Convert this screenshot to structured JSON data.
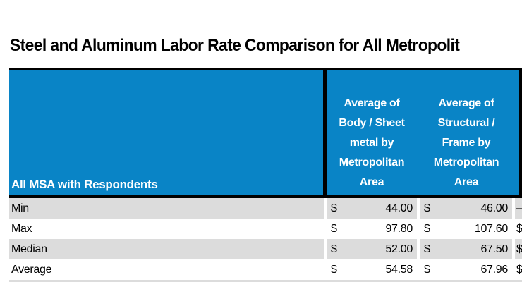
{
  "title": "Steel and Aluminum Labor Rate Comparison for All Metropolit",
  "colors": {
    "header_blue": "#0984c6",
    "row_stripe_gray": "#dcdcdc",
    "border_black": "#000000",
    "header_text": "#ffffff"
  },
  "table": {
    "row_header_label": "All MSA with Respondents",
    "columns": [
      {
        "label": "Average of Body / Sheet metal by Metropolitan Area",
        "lines": [
          "Average of",
          "Body / Sheet",
          "metal by",
          "Metropolitan",
          "Area"
        ]
      },
      {
        "label": "Average of Structural / Frame by Metropolitan Area",
        "lines": [
          "Average of",
          "Structural /",
          "Frame by",
          "Metropolitan",
          "Area"
        ]
      }
    ],
    "rows": [
      {
        "label": "Min",
        "cells": [
          {
            "currency": "$",
            "value": "44.00"
          },
          {
            "currency": "$",
            "value": "46.00"
          },
          {
            "partial": "–"
          }
        ]
      },
      {
        "label": "Max",
        "cells": [
          {
            "currency": "$",
            "value": "97.80"
          },
          {
            "currency": "$",
            "value": "107.60"
          },
          {
            "partial": "$"
          }
        ]
      },
      {
        "label": "Median",
        "cells": [
          {
            "currency": "$",
            "value": "52.00"
          },
          {
            "currency": "$",
            "value": "67.50"
          },
          {
            "partial": "$"
          }
        ]
      },
      {
        "label": "Average",
        "cells": [
          {
            "currency": "$",
            "value": "54.58"
          },
          {
            "currency": "$",
            "value": "67.96"
          },
          {
            "partial": "$"
          }
        ]
      }
    ]
  }
}
